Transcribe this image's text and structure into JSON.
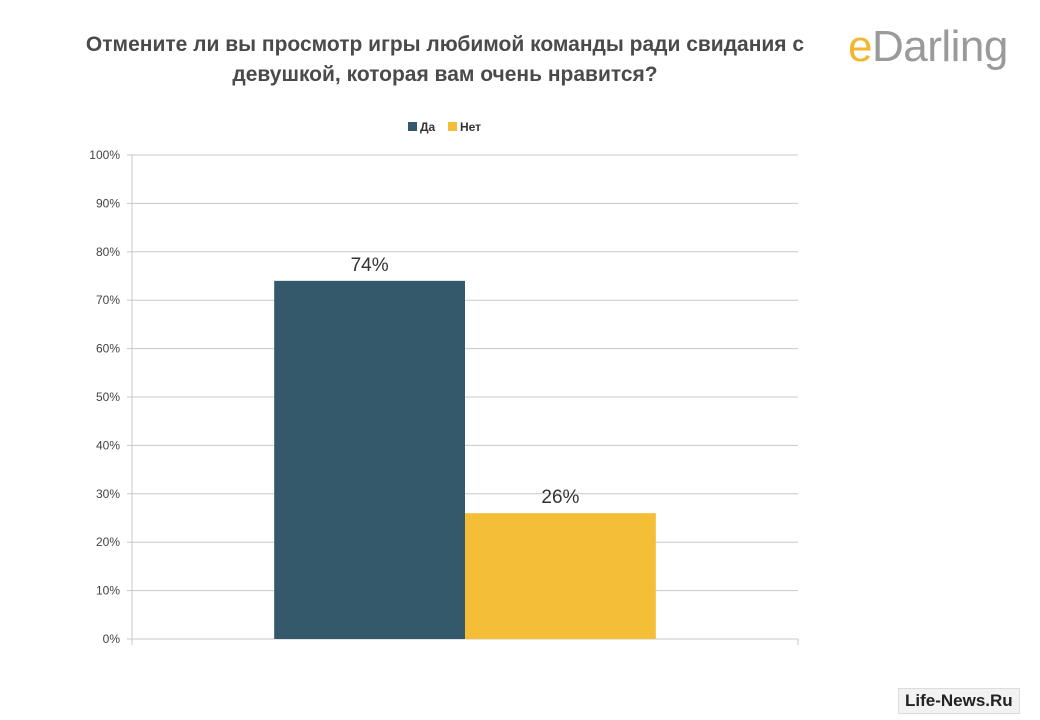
{
  "brand": {
    "logo_e": "e",
    "logo_rest": "Darling",
    "watermark": "Life-News.Ru"
  },
  "colors": {
    "yes": "#34596b",
    "no": "#f4be36",
    "grid": "#c8c8c8",
    "axis_text": "#444444"
  },
  "chart_data": {
    "type": "bar",
    "title": "Отмените ли вы просмотр игры любимой команды ради свидания с девушкой, которая вам очень нравится?",
    "categories": [
      ""
    ],
    "series": [
      {
        "name": "Да",
        "values": [
          74
        ],
        "label": "74%"
      },
      {
        "name": "Нет",
        "values": [
          26
        ],
        "label": "26%"
      }
    ],
    "ylim": [
      0,
      100
    ],
    "yticks": [
      "0%",
      "10%",
      "20%",
      "30%",
      "40%",
      "50%",
      "60%",
      "70%",
      "80%",
      "90%",
      "100%"
    ],
    "legend": "top-center",
    "grid": true,
    "xlabel": "",
    "ylabel": ""
  }
}
